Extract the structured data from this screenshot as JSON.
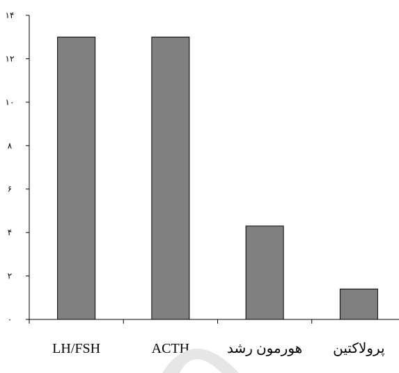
{
  "chart_data": {
    "type": "bar",
    "categories": [
      "LH/FSH",
      "ACTH",
      "هورمون رشد",
      "پرولاکتین"
    ],
    "values": [
      13,
      13,
      4.3,
      1.4
    ],
    "ylim": [
      0,
      14
    ],
    "yticks": [
      0,
      2,
      4,
      6,
      8,
      10,
      12,
      14
    ],
    "ytick_labels": [
      "٠",
      "٢",
      "۴",
      "۶",
      "٨",
      "١٠",
      "١٢",
      "١۴"
    ],
    "title": "",
    "xlabel": "",
    "ylabel": "",
    "grid": false,
    "legend": "none",
    "colors": {
      "bar_fill": "#808080",
      "bar_stroke": "#000000",
      "axis": "#000000"
    }
  }
}
